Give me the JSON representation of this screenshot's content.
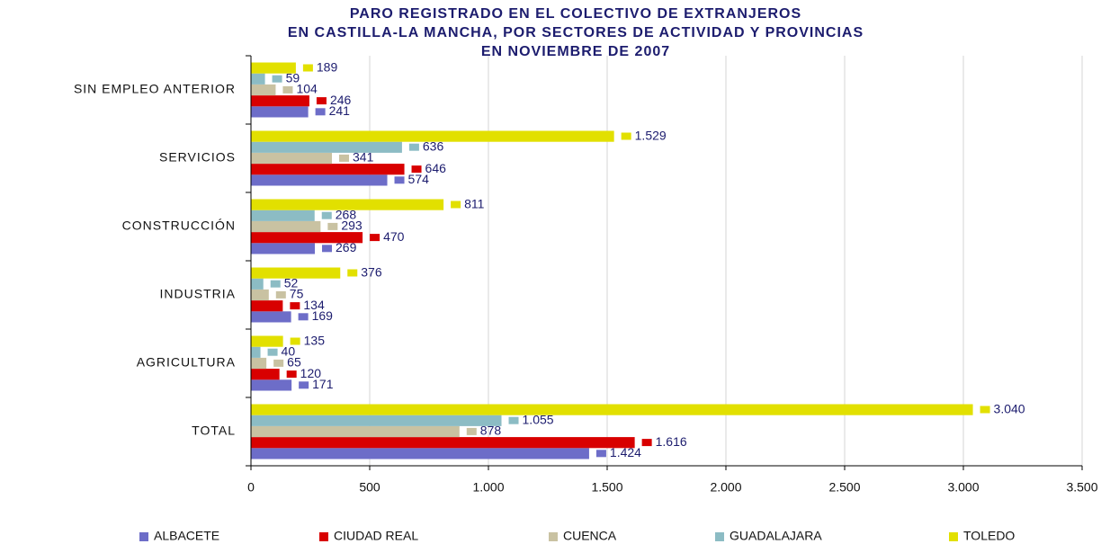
{
  "chart_data": {
    "type": "hbar",
    "title": [
      "PARO REGISTRADO EN EL COLECTIVO DE EXTRANJEROS",
      "EN CASTILLA-LA MANCHA, POR SECTORES DE ACTIVIDAD Y PROVINCIAS",
      "EN NOVIEMBRE DE 2007"
    ],
    "categories": [
      "SIN EMPLEO ANTERIOR",
      "SERVICIOS",
      "CONSTRUCCIÓN",
      "INDUSTRIA",
      "AGRICULTURA",
      "TOTAL"
    ],
    "series": [
      {
        "name": "ALBACETE",
        "color": "#6d6dc8",
        "values": [
          241,
          574,
          269,
          169,
          171,
          1424
        ],
        "value_labels": [
          "241",
          "574",
          "269",
          "169",
          "171",
          "1.424"
        ]
      },
      {
        "name": "CIUDAD REAL",
        "color": "#d80000",
        "values": [
          246,
          646,
          470,
          134,
          120,
          1616
        ],
        "value_labels": [
          "246",
          "646",
          "470",
          "134",
          "120",
          "1.616"
        ]
      },
      {
        "name": "CUENCA",
        "color": "#c9c2a2",
        "values": [
          104,
          341,
          293,
          75,
          65,
          878
        ],
        "value_labels": [
          "104",
          "341",
          "293",
          "75",
          "65",
          "878"
        ]
      },
      {
        "name": "GUADALAJARA",
        "color": "#8cbcc4",
        "values": [
          59,
          636,
          268,
          52,
          40,
          1055
        ],
        "value_labels": [
          "59",
          "636",
          "268",
          "52",
          "40",
          "1.055"
        ]
      },
      {
        "name": "TOLEDO",
        "color": "#e2e000",
        "values": [
          189,
          1529,
          811,
          376,
          135,
          3040
        ],
        "value_labels": [
          "189",
          "1.529",
          "811",
          "376",
          "135",
          "3.040"
        ]
      }
    ],
    "xlim": [
      0,
      3500
    ],
    "xticks": [
      0,
      500,
      {
        "value": 1000,
        "label": "1.000"
      },
      {
        "value": 1500,
        "label": "1.500"
      },
      {
        "value": 2000,
        "label": "2.000"
      },
      {
        "value": 2500,
        "label": "2.500"
      },
      {
        "value": 3000,
        "label": "3.000"
      },
      {
        "value": 3500,
        "label": "3.500"
      }
    ],
    "grid": true,
    "legend": "bottom"
  }
}
